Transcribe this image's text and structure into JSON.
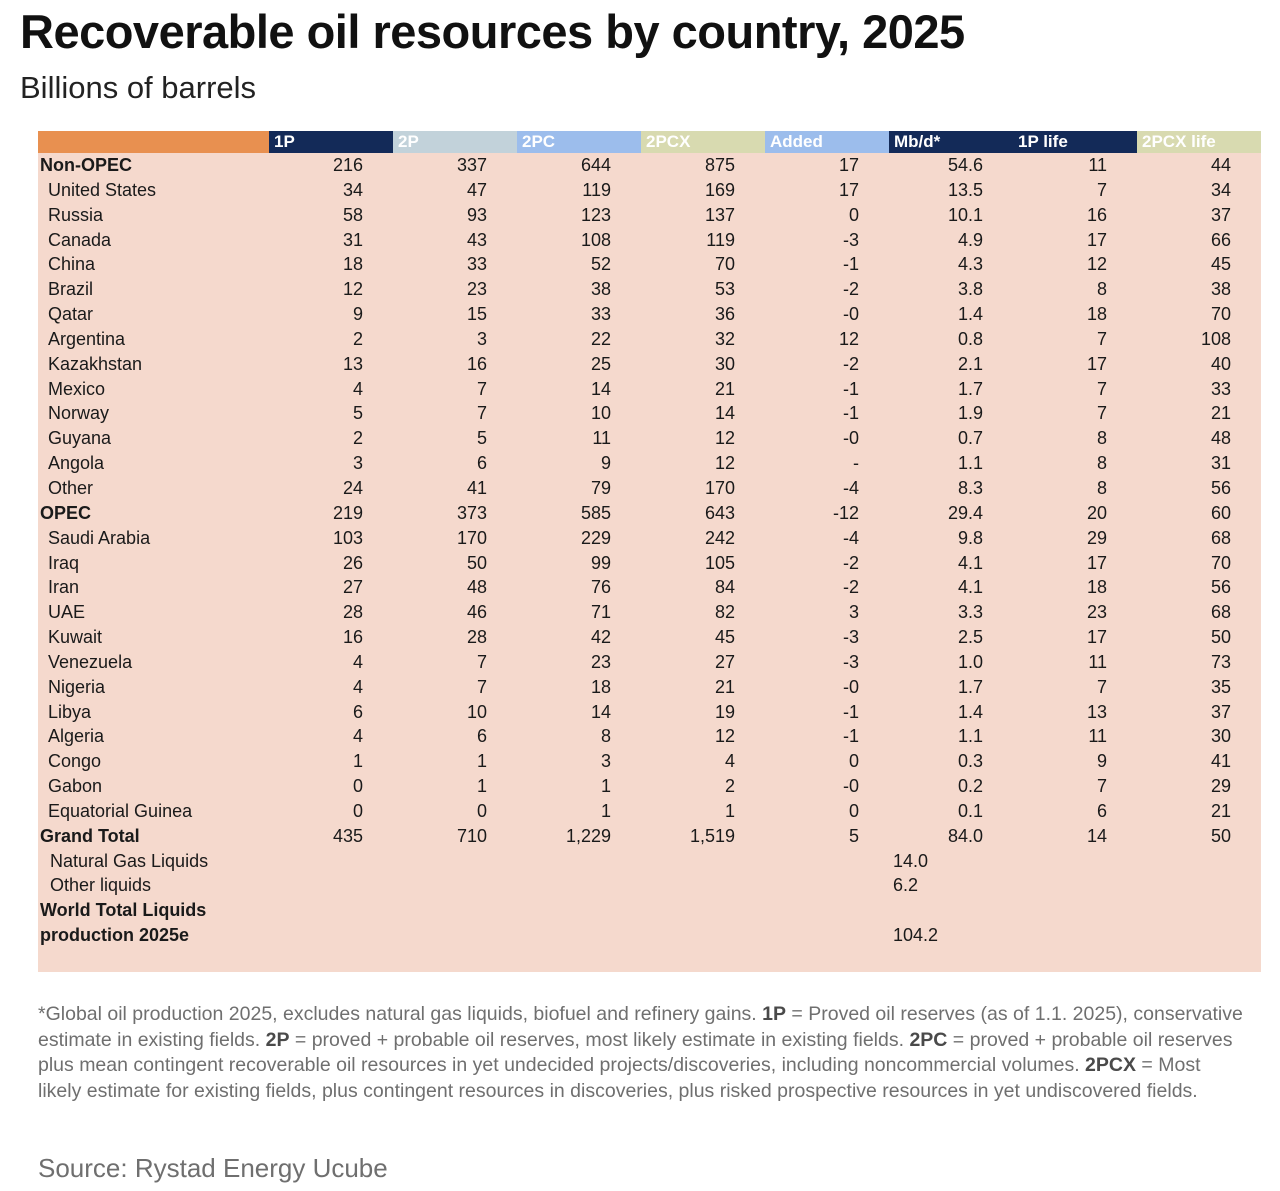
{
  "title": "Recoverable oil resources by country, 2025",
  "subtitle": "Billions of barrels",
  "colors": {
    "header_label": "#e89050",
    "header_1p": "#132a58",
    "header_2p": "#c2d2da",
    "header_2pc": "#9cbdec",
    "header_2pcx": "#d8dab0",
    "header_added": "#9cbdec",
    "header_mbd": "#132a58",
    "header_1plife": "#132a58",
    "header_2pcxlife": "#d8dab0",
    "cell_background": "#f5d9cd"
  },
  "chart_data": {
    "type": "table",
    "columns": [
      "1P",
      "2P",
      "2PC",
      "2PCX",
      "Added",
      "Mb/d*",
      "1P life",
      "2PCX life"
    ],
    "rows": [
      {
        "label": "Non-OPEC",
        "style": "group",
        "values": [
          "216",
          "337",
          "644",
          "875",
          "17",
          "54.6",
          "11",
          "44"
        ]
      },
      {
        "label": "United States",
        "values": [
          "34",
          "47",
          "119",
          "169",
          "17",
          "13.5",
          "7",
          "34"
        ]
      },
      {
        "label": "Russia",
        "values": [
          "58",
          "93",
          "123",
          "137",
          "0",
          "10.1",
          "16",
          "37"
        ]
      },
      {
        "label": "Canada",
        "values": [
          "31",
          "43",
          "108",
          "119",
          "-3",
          "4.9",
          "17",
          "66"
        ]
      },
      {
        "label": "China",
        "values": [
          "18",
          "33",
          "52",
          "70",
          "-1",
          "4.3",
          "12",
          "45"
        ]
      },
      {
        "label": "Brazil",
        "values": [
          "12",
          "23",
          "38",
          "53",
          "-2",
          "3.8",
          "8",
          "38"
        ]
      },
      {
        "label": "Qatar",
        "values": [
          "9",
          "15",
          "33",
          "36",
          "-0",
          "1.4",
          "18",
          "70"
        ]
      },
      {
        "label": "Argentina",
        "values": [
          "2",
          "3",
          "22",
          "32",
          "12",
          "0.8",
          "7",
          "108"
        ]
      },
      {
        "label": "Kazakhstan",
        "values": [
          "13",
          "16",
          "25",
          "30",
          "-2",
          "2.1",
          "17",
          "40"
        ]
      },
      {
        "label": "Mexico",
        "values": [
          "4",
          "7",
          "14",
          "21",
          "-1",
          "1.7",
          "7",
          "33"
        ]
      },
      {
        "label": "Norway",
        "values": [
          "5",
          "7",
          "10",
          "14",
          "-1",
          "1.9",
          "7",
          "21"
        ]
      },
      {
        "label": "Guyana",
        "values": [
          "2",
          "5",
          "11",
          "12",
          "-0",
          "0.7",
          "8",
          "48"
        ]
      },
      {
        "label": "Angola",
        "values": [
          "3",
          "6",
          "9",
          "12",
          "-",
          "1.1",
          "8",
          "31"
        ]
      },
      {
        "label": "Other",
        "values": [
          "24",
          "41",
          "79",
          "170",
          "-4",
          "8.3",
          "8",
          "56"
        ]
      },
      {
        "label": "OPEC",
        "style": "group",
        "values": [
          "219",
          "373",
          "585",
          "643",
          "-12",
          "29.4",
          "20",
          "60"
        ]
      },
      {
        "label": "Saudi Arabia",
        "values": [
          "103",
          "170",
          "229",
          "242",
          "-4",
          "9.8",
          "29",
          "68"
        ]
      },
      {
        "label": "Iraq",
        "values": [
          "26",
          "50",
          "99",
          "105",
          "-2",
          "4.1",
          "17",
          "70"
        ]
      },
      {
        "label": "Iran",
        "values": [
          "27",
          "48",
          "76",
          "84",
          "-2",
          "4.1",
          "18",
          "56"
        ]
      },
      {
        "label": "UAE",
        "values": [
          "28",
          "46",
          "71",
          "82",
          "3",
          "3.3",
          "23",
          "68"
        ]
      },
      {
        "label": "Kuwait",
        "values": [
          "16",
          "28",
          "42",
          "45",
          "-3",
          "2.5",
          "17",
          "50"
        ]
      },
      {
        "label": "Venezuela",
        "values": [
          "4",
          "7",
          "23",
          "27",
          "-3",
          "1.0",
          "11",
          "73"
        ]
      },
      {
        "label": "Nigeria",
        "values": [
          "4",
          "7",
          "18",
          "21",
          "-0",
          "1.7",
          "7",
          "35"
        ]
      },
      {
        "label": "Libya",
        "values": [
          "6",
          "10",
          "14",
          "19",
          "-1",
          "1.4",
          "13",
          "37"
        ]
      },
      {
        "label": "Algeria",
        "values": [
          "4",
          "6",
          "8",
          "12",
          "-1",
          "1.1",
          "11",
          "30"
        ]
      },
      {
        "label": "Congo",
        "values": [
          "1",
          "1",
          "3",
          "4",
          "0",
          "0.3",
          "9",
          "41"
        ]
      },
      {
        "label": "Gabon",
        "values": [
          "0",
          "1",
          "1",
          "2",
          "-0",
          "0.2",
          "7",
          "29"
        ]
      },
      {
        "label": "Equatorial Guinea",
        "values": [
          "0",
          "0",
          "1",
          "1",
          "0",
          "0.1",
          "6",
          "21"
        ]
      },
      {
        "label": "Grand Total",
        "style": "total",
        "values": [
          "435",
          "710",
          "1,229",
          "1,519",
          "5",
          "84.0",
          "14",
          "50"
        ]
      }
    ],
    "extra_rows": [
      {
        "label": "Natural Gas Liquids",
        "mbd": "14.0"
      },
      {
        "label": "Other liquids",
        "mbd": "6.2"
      },
      {
        "label": "World Total Liquids production 2025e",
        "mbd": "104.2"
      }
    ]
  },
  "footnote": {
    "star": "*",
    "p1": "Global oil production 2025, excludes natural gas liquids, biofuel and refinery gains.",
    "t1p": "1P",
    "p2": "= Proved oil reserves (as of 1.1. 2025), conservative estimate in existing fields.",
    "t2p": "2P",
    "p3": "= proved + probable oil reserves, most likely estimate in existing fields.",
    "t2pc": "2PC",
    "p4": "= proved + probable oil reserves plus mean contingent recoverable oil resources in yet undecided projects/discoveries, including noncommercial volumes.",
    "t2pcx": "2PCX",
    "p5": "= Most likely estimate for existing fields, plus contingent resources in discoveries, plus risked prospective resources in yet undiscovered fields."
  },
  "source": "Source: Rystad Energy Ucube"
}
